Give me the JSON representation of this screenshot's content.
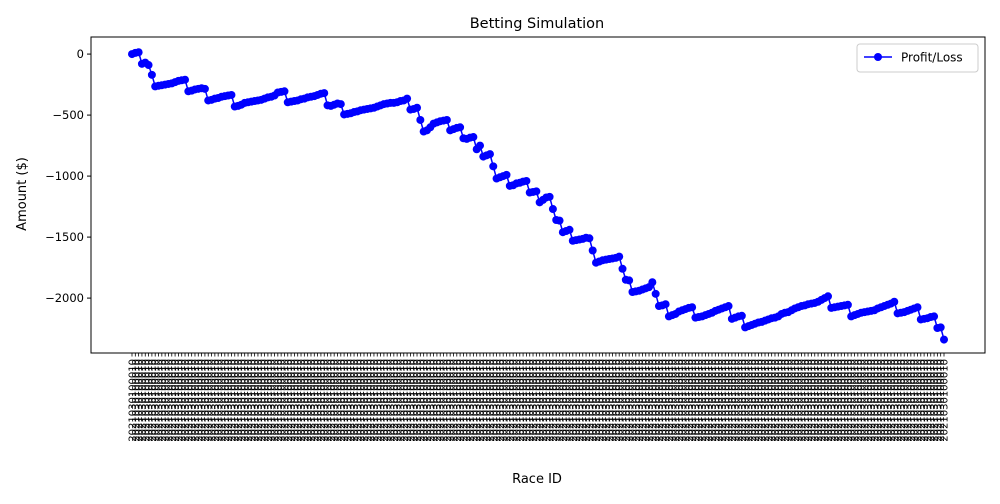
{
  "chart_data": {
    "type": "line",
    "title": "Betting Simulation",
    "xlabel": "Race ID",
    "ylabel": "Amount ($)",
    "ylim": [
      -2450,
      140
    ],
    "yticks": [
      0,
      -500,
      -1000,
      -1500,
      -2000
    ],
    "grid": false,
    "legend_position": "top-right",
    "x_tick_label": "2021030100010",
    "series": [
      {
        "name": "Profit/Loss",
        "color": "#0000ff",
        "marker": "circle",
        "values": [
          0,
          10,
          15,
          -80,
          -70,
          -90,
          -170,
          -265,
          -260,
          -255,
          -250,
          -245,
          -240,
          -230,
          -220,
          -215,
          -210,
          -305,
          -300,
          -290,
          -285,
          -280,
          -285,
          -380,
          -375,
          -365,
          -360,
          -350,
          -345,
          -340,
          -335,
          -430,
          -425,
          -415,
          -400,
          -395,
          -390,
          -385,
          -380,
          -375,
          -365,
          -355,
          -350,
          -340,
          -315,
          -310,
          -305,
          -395,
          -390,
          -385,
          -380,
          -370,
          -365,
          -355,
          -350,
          -345,
          -335,
          -325,
          -320,
          -420,
          -425,
          -415,
          -405,
          -410,
          -495,
          -490,
          -485,
          -475,
          -470,
          -460,
          -455,
          -450,
          -445,
          -440,
          -430,
          -420,
          -410,
          -405,
          -400,
          -400,
          -395,
          -385,
          -380,
          -365,
          -455,
          -450,
          -440,
          -540,
          -635,
          -625,
          -600,
          -570,
          -560,
          -550,
          -545,
          -540,
          -625,
          -615,
          -605,
          -600,
          -690,
          -695,
          -685,
          -680,
          -780,
          -750,
          -840,
          -830,
          -820,
          -920,
          -1020,
          -1010,
          -1000,
          -990,
          -1080,
          -1075,
          -1060,
          -1055,
          -1045,
          -1040,
          -1135,
          -1130,
          -1125,
          -1215,
          -1195,
          -1175,
          -1170,
          -1270,
          -1360,
          -1365,
          -1460,
          -1450,
          -1440,
          -1530,
          -1525,
          -1520,
          -1515,
          -1505,
          -1510,
          -1610,
          -1710,
          -1700,
          -1690,
          -1685,
          -1680,
          -1675,
          -1670,
          -1660,
          -1760,
          -1850,
          -1855,
          -1950,
          -1945,
          -1940,
          -1930,
          -1920,
          -1910,
          -1870,
          -1965,
          -2065,
          -2060,
          -2050,
          -2150,
          -2140,
          -2130,
          -2110,
          -2100,
          -2090,
          -2080,
          -2075,
          -2160,
          -2155,
          -2150,
          -2140,
          -2130,
          -2120,
          -2105,
          -2095,
          -2085,
          -2075,
          -2065,
          -2170,
          -2160,
          -2150,
          -2145,
          -2240,
          -2230,
          -2220,
          -2210,
          -2200,
          -2195,
          -2185,
          -2175,
          -2165,
          -2160,
          -2150,
          -2130,
          -2120,
          -2115,
          -2100,
          -2085,
          -2075,
          -2065,
          -2060,
          -2050,
          -2045,
          -2040,
          -2030,
          -2015,
          -2000,
          -1985,
          -2080,
          -2075,
          -2070,
          -2065,
          -2060,
          -2055,
          -2150,
          -2140,
          -2130,
          -2120,
          -2115,
          -2110,
          -2105,
          -2100,
          -2085,
          -2075,
          -2065,
          -2055,
          -2045,
          -2030,
          -2125,
          -2120,
          -2115,
          -2105,
          -2095,
          -2085,
          -2075,
          -2175,
          -2170,
          -2165,
          -2155,
          -2150,
          -2245,
          -2240,
          -2340
        ]
      }
    ]
  }
}
